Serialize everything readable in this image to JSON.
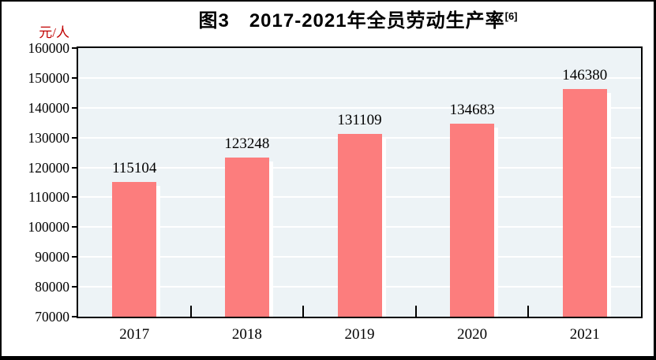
{
  "figure": {
    "title": "图3　2017-2021年全员劳动生产率",
    "title_superscript": "[6]"
  },
  "chart_data": {
    "type": "bar",
    "title": "图3　2017-2021年全员劳动生产率",
    "title_superscript": "[6]",
    "ylabel": "元/人",
    "xlabel": "",
    "categories": [
      "2017",
      "2018",
      "2019",
      "2020",
      "2021"
    ],
    "values": [
      115104,
      123248,
      131109,
      134683,
      146380
    ],
    "value_labels": [
      "115104",
      "123248",
      "131109",
      "134683",
      "146380"
    ],
    "ylim": [
      70000,
      160000
    ],
    "ytick_step": 10000,
    "yticks": [
      70000,
      80000,
      90000,
      100000,
      110000,
      120000,
      130000,
      140000,
      150000,
      160000
    ],
    "grid": true,
    "legend": false,
    "colors": {
      "bar": "#FC7D7D",
      "bar_shadow": "#FFFFFF",
      "plot_background": "#EDF3F6",
      "gridline": "#FFFFFF",
      "axis_frame": "#000000",
      "text": "#000000",
      "unit_label": "#C00000"
    }
  }
}
